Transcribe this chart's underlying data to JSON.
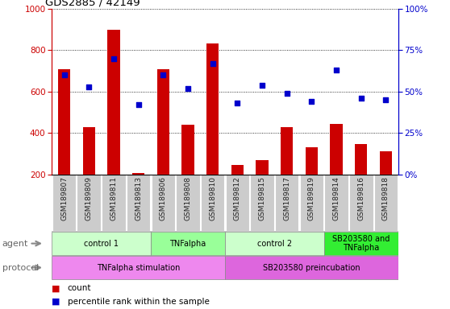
{
  "title": "GDS2885 / 42149",
  "samples": [
    "GSM189807",
    "GSM189809",
    "GSM189811",
    "GSM189813",
    "GSM189806",
    "GSM189808",
    "GSM189810",
    "GSM189812",
    "GSM189815",
    "GSM189817",
    "GSM189819",
    "GSM189814",
    "GSM189816",
    "GSM189818"
  ],
  "counts": [
    710,
    430,
    900,
    205,
    710,
    440,
    835,
    245,
    270,
    430,
    330,
    445,
    345,
    310
  ],
  "percentile_ranks": [
    60,
    53,
    70,
    42,
    60,
    52,
    67,
    43,
    54,
    49,
    44,
    63,
    46,
    45
  ],
  "ylim_left": [
    200,
    1000
  ],
  "ylim_right": [
    0,
    100
  ],
  "yticks_left": [
    200,
    400,
    600,
    800,
    1000
  ],
  "yticks_right": [
    0,
    25,
    50,
    75,
    100
  ],
  "agent_groups": [
    {
      "label": "control 1",
      "start": 0,
      "end": 4,
      "color": "#ccffcc"
    },
    {
      "label": "TNFalpha",
      "start": 4,
      "end": 7,
      "color": "#99ff99"
    },
    {
      "label": "control 2",
      "start": 7,
      "end": 11,
      "color": "#ccffcc"
    },
    {
      "label": "SB203580 and\nTNFalpha",
      "start": 11,
      "end": 14,
      "color": "#33ee33"
    }
  ],
  "protocol_groups": [
    {
      "label": "TNFalpha stimulation",
      "start": 0,
      "end": 7,
      "color": "#ee88ee"
    },
    {
      "label": "SB203580 preincubation",
      "start": 7,
      "end": 14,
      "color": "#dd66dd"
    }
  ],
  "bar_color": "#cc0000",
  "scatter_color": "#0000cc",
  "bar_width": 0.5,
  "grid_color": "black",
  "grid_linestyle": "dotted",
  "left_axis_color": "#cc0000",
  "right_axis_color": "#0000cc",
  "legend_red_label": "count",
  "legend_blue_label": "percentile rank within the sample",
  "agent_label": "agent",
  "protocol_label": "protocol",
  "sample_box_color": "#cccccc",
  "tick_label_fontsize": 6.5,
  "bar_label_fontsize": 7,
  "axis_label_fontsize": 7.5
}
